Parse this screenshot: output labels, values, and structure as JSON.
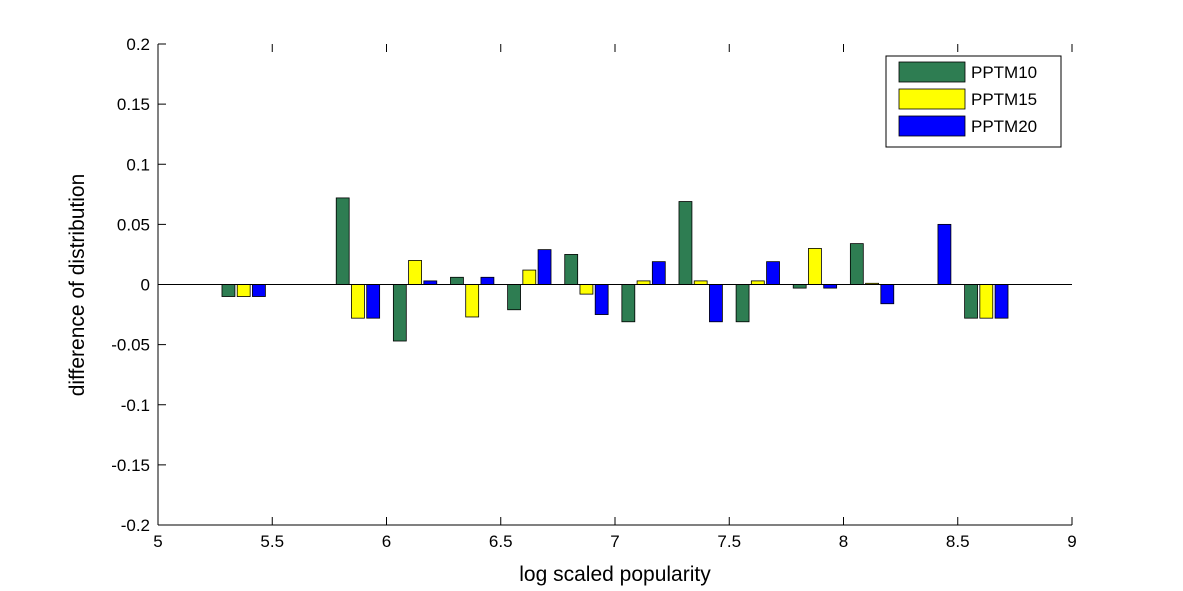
{
  "chart_data": {
    "type": "bar",
    "title": "",
    "xlabel": "log scaled popularity",
    "ylabel": "difference of distribution",
    "xlim": [
      5,
      9
    ],
    "ylim": [
      -0.2,
      0.2
    ],
    "xticks": [
      "5",
      "5.5",
      "6",
      "6.5",
      "7",
      "7.5",
      "8",
      "8.5",
      "9"
    ],
    "xtick_values": [
      5,
      5.5,
      6,
      6.5,
      7,
      7.5,
      8,
      8.5,
      9
    ],
    "yticks": [
      "-0.2",
      "-0.15",
      "-0.1",
      "-0.05",
      "0",
      "0.05",
      "0.1",
      "0.15",
      "0.2"
    ],
    "ytick_values": [
      -0.2,
      -0.15,
      -0.1,
      -0.05,
      0,
      0.05,
      0.1,
      0.15,
      0.2
    ],
    "grid": false,
    "legend_position": "top-right",
    "x": [
      5.375,
      5.875,
      6.125,
      6.375,
      6.625,
      6.875,
      7.125,
      7.375,
      7.625,
      7.875,
      8.125,
      8.375,
      8.625
    ],
    "series": [
      {
        "name": "PPTM10",
        "color": "#2e7d52",
        "values": [
          -0.01,
          0.072,
          -0.047,
          0.006,
          -0.021,
          0.025,
          -0.031,
          0.069,
          -0.031,
          -0.003,
          0.034,
          0,
          -0.028
        ]
      },
      {
        "name": "PPTM15",
        "color": "#ffff00",
        "values": [
          -0.01,
          -0.028,
          0.02,
          -0.027,
          0.012,
          -0.008,
          0.003,
          0.003,
          0.003,
          0.03,
          0.001,
          0,
          -0.028
        ]
      },
      {
        "name": "PPTM20",
        "color": "#0000ff",
        "values": [
          -0.01,
          -0.028,
          0.003,
          0.006,
          0.029,
          -0.025,
          0.019,
          -0.031,
          0.019,
          -0.003,
          -0.016,
          0.05,
          -0.028
        ]
      }
    ]
  }
}
